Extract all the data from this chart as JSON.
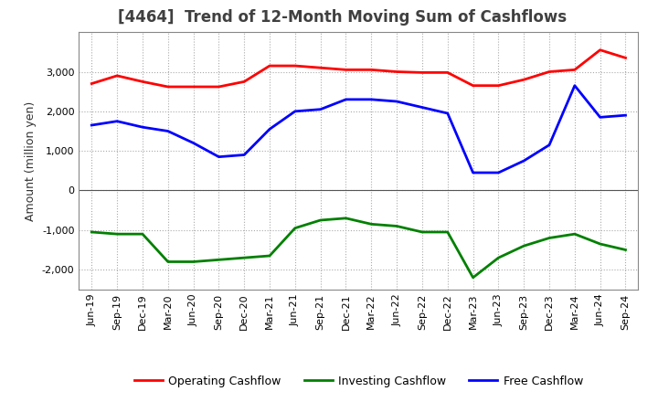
{
  "title": "[4464]  Trend of 12-Month Moving Sum of Cashflows",
  "ylabel": "Amount (million yen)",
  "x_labels": [
    "Jun-19",
    "Sep-19",
    "Dec-19",
    "Mar-20",
    "Jun-20",
    "Sep-20",
    "Dec-20",
    "Mar-21",
    "Jun-21",
    "Sep-21",
    "Dec-21",
    "Mar-22",
    "Jun-22",
    "Sep-22",
    "Dec-22",
    "Mar-23",
    "Jun-23",
    "Sep-23",
    "Dec-23",
    "Mar-24",
    "Jun-24",
    "Sep-24"
  ],
  "operating": [
    2700,
    2900,
    2750,
    2620,
    2620,
    2620,
    2750,
    3150,
    3150,
    3100,
    3050,
    3050,
    3000,
    2980,
    2980,
    2650,
    2650,
    2800,
    3000,
    3050,
    3550,
    3350
  ],
  "investing": [
    -1050,
    -1100,
    -1100,
    -1800,
    -1800,
    -1750,
    -1700,
    -1650,
    -950,
    -750,
    -700,
    -850,
    -900,
    -1050,
    -1050,
    -2200,
    -1700,
    -1400,
    -1200,
    -1100,
    -1350,
    -1500
  ],
  "free": [
    1650,
    1750,
    1600,
    1500,
    1200,
    850,
    900,
    1550,
    2000,
    2050,
    2300,
    2300,
    2250,
    2100,
    1950,
    450,
    450,
    750,
    1150,
    2650,
    1850,
    1900
  ],
  "operating_color": "#ff0000",
  "investing_color": "#008000",
  "free_color": "#0000ff",
  "ylim": [
    -2500,
    4000
  ],
  "yticks": [
    -2000,
    -1000,
    0,
    1000,
    2000,
    3000
  ],
  "background_color": "#ffffff",
  "plot_bg_color": "#ffffff",
  "grid_color": "#aaaaaa",
  "linewidth": 2.0,
  "title_color": "#404040",
  "title_fontsize": 12,
  "tick_fontsize": 8,
  "ylabel_fontsize": 9,
  "legend_fontsize": 9
}
